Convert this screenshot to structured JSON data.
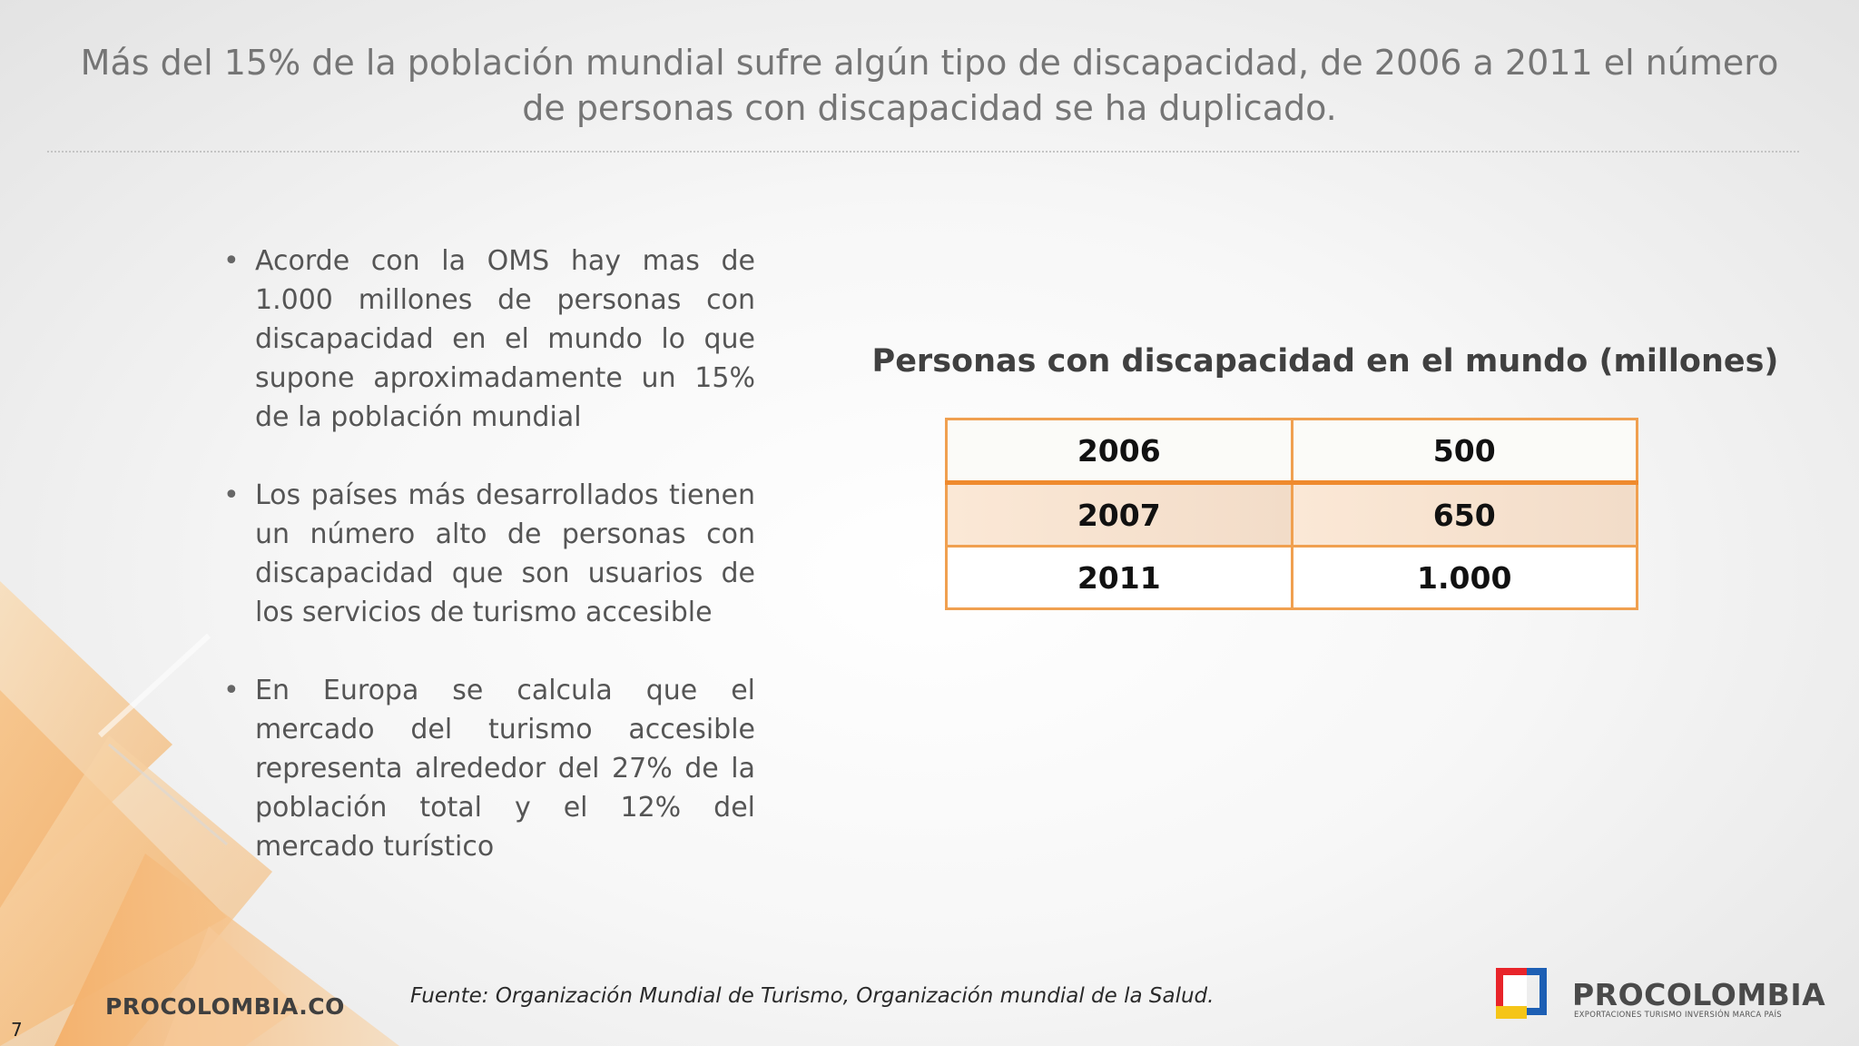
{
  "slide": {
    "title": "Más del 15% de la población mundial sufre algún tipo de discapacidad, de 2006 a 2011 el número de personas con discapacidad se ha duplicado.",
    "page_number": "7"
  },
  "bullets": [
    "Acorde con la OMS hay mas de 1.000 millones de personas con discapacidad en el mundo lo que supone aproximadamente un 15% de la población mundial",
    "Los países más desarrollados tienen un número alto de personas con discapacidad que son usuarios de los servicios de turismo accesible",
    "En Europa se calcula que el mercado del turismo accesible representa alrededor del 27% de la población total y el 12% del mercado turístico"
  ],
  "table": {
    "title": "Personas con discapacidad en el mundo (millones)",
    "rows": [
      {
        "year": "2006",
        "value": "500"
      },
      {
        "year": "2007",
        "value": "650"
      },
      {
        "year": "2011",
        "value": "1.000"
      }
    ]
  },
  "footer": {
    "website": "PROCOLOMBIA.CO",
    "source": "Fuente: Organización Mundial de Turismo, Organización mundial de la Salud.",
    "brand_name": "PROCOLOMBIA",
    "brand_tagline": "EXPORTACIONES TURISMO INVERSIÓN MARCA PAÍS"
  },
  "colors": {
    "accent_orange": "#ef8a2e",
    "table_border": "#f0a050",
    "title_gray": "#757575",
    "logo_red": "#e8242a",
    "logo_blue": "#1d5fb4",
    "logo_yellow": "#f5c518"
  }
}
